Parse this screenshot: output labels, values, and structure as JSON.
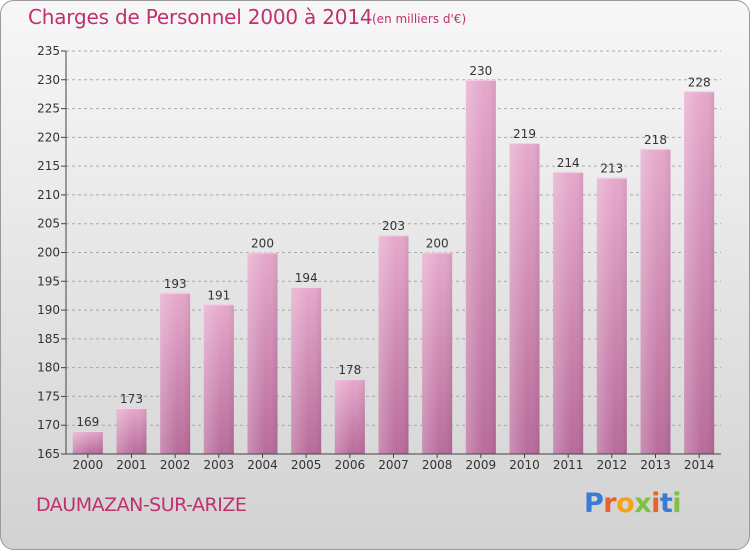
{
  "title": "Charges de Personnel 2000 à 2014",
  "subtitle": "(en milliers d'€)",
  "commune": "DAUMAZAN-SUR-ARIZE",
  "logo": {
    "text": "Proxiti",
    "letter_colors": [
      "#3a7bd5",
      "#e8622c",
      "#f3a41b",
      "#7dc242",
      "#e8622c",
      "#3a7bd5",
      "#7dc242"
    ]
  },
  "colors": {
    "text_accent": "#c0306f",
    "bar_top": "#e6a9cc",
    "bar_bottom": "#b86b9a",
    "axis": "#444444",
    "grid": "#aaaaaa"
  },
  "chart_data": {
    "type": "bar",
    "categories": [
      "2000",
      "2001",
      "2002",
      "2003",
      "2004",
      "2005",
      "2006",
      "2007",
      "2008",
      "2009",
      "2010",
      "2011",
      "2012",
      "2013",
      "2014"
    ],
    "values": [
      169,
      173,
      193,
      191,
      200,
      194,
      178,
      203,
      200,
      230,
      219,
      214,
      213,
      218,
      228
    ],
    "ylim": [
      165,
      235
    ],
    "yticks": [
      165,
      170,
      175,
      180,
      185,
      190,
      195,
      200,
      205,
      210,
      215,
      220,
      225,
      230,
      235
    ],
    "grid": true,
    "data_labels": true
  }
}
